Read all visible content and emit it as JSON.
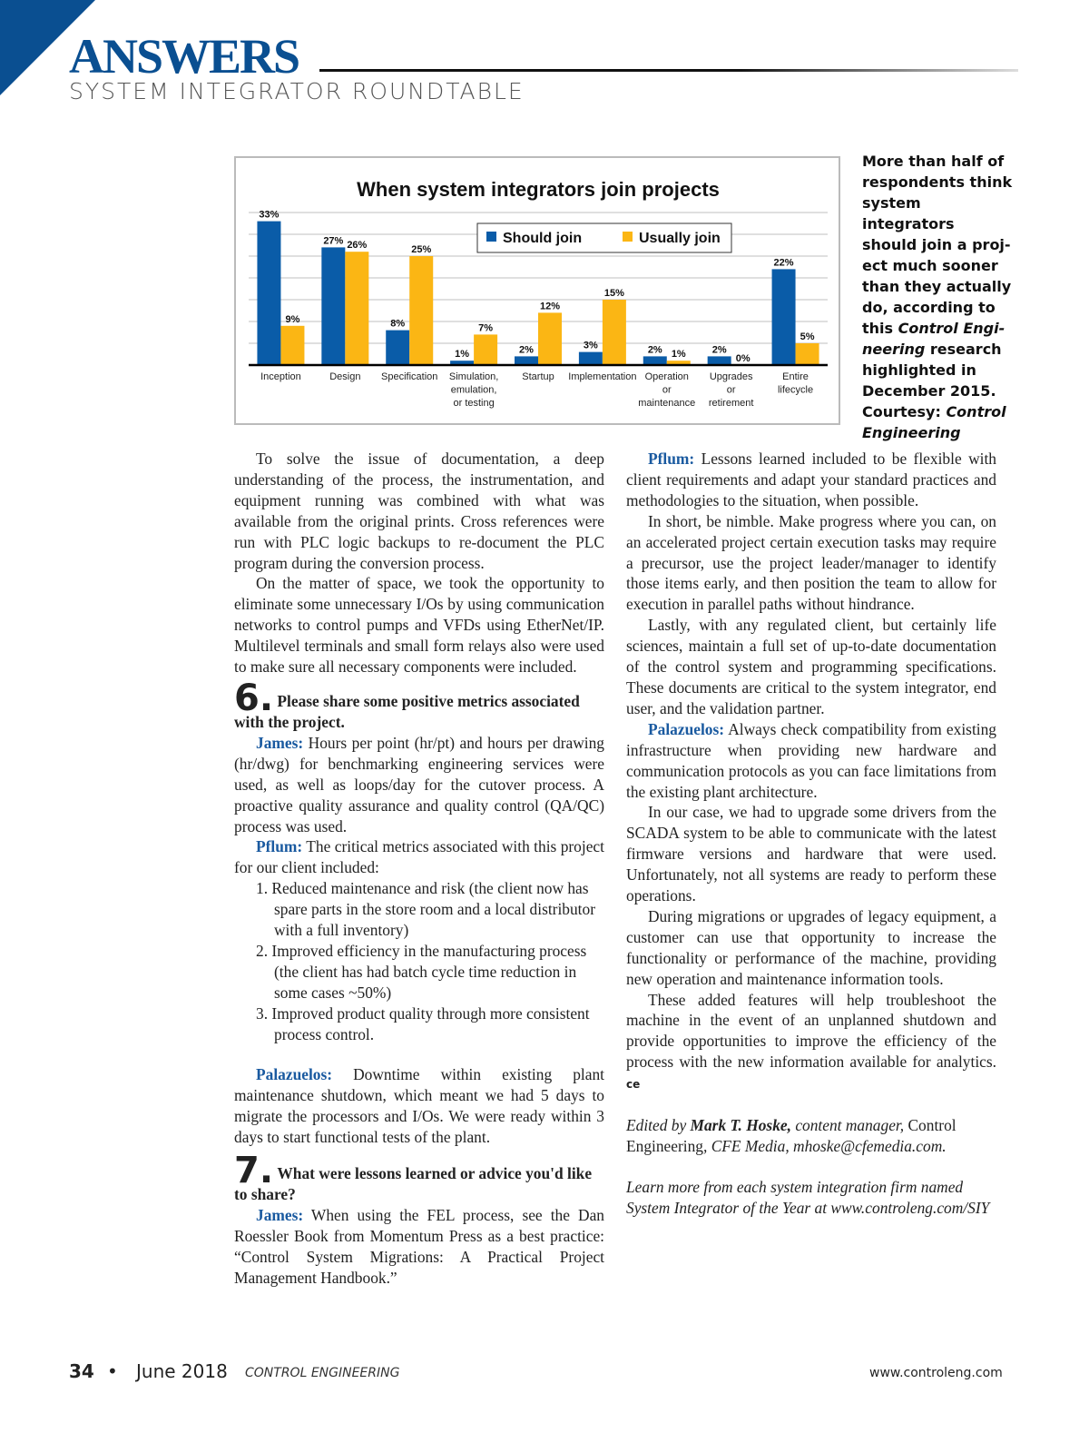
{
  "header": {
    "section": "ANSWERS",
    "subtitle": "SYSTEM INTEGRATOR ROUNDTABLE"
  },
  "chart_data": {
    "type": "bar",
    "title": "When system integrators join projects",
    "categories": [
      "Inception",
      "Design",
      "Specification",
      "Simulation, emulation, or testing",
      "Startup",
      "Implementation",
      "Operation or maintenance",
      "Upgrades or retirement",
      "Entire lifecycle"
    ],
    "category_lines": [
      [
        "Inception"
      ],
      [
        "Design"
      ],
      [
        "Specification"
      ],
      [
        "Simulation,",
        "emulation,",
        "or testing"
      ],
      [
        "Startup"
      ],
      [
        "Implementation"
      ],
      [
        "Operation",
        "or",
        "maintenance"
      ],
      [
        "Upgrades",
        "or",
        "retirement"
      ],
      [
        "Entire",
        "lifecycle"
      ]
    ],
    "series": [
      {
        "name": "Should join",
        "color": "#0a5ca8",
        "values": [
          33,
          27,
          8,
          1,
          2,
          3,
          2,
          2,
          22
        ]
      },
      {
        "name": "Usually join",
        "color": "#fbb614",
        "values": [
          9,
          26,
          25,
          7,
          12,
          15,
          1,
          0,
          5
        ]
      }
    ],
    "unit": "%",
    "ylim": [
      0,
      35
    ],
    "grid": true,
    "legend": "top-center"
  },
  "caption": [
    "More than half of",
    "respondents think",
    "system integrators",
    "should join a proj-",
    "ect much sooner",
    "than they actually",
    "do, according to",
    "this ",
    "Control Engi-",
    "neering",
    " research",
    "highlighted in",
    "December 2015.",
    "Courtesy: ",
    "Control",
    "Engineering"
  ],
  "left": {
    "p1": "To solve the issue of documentation, a deep understanding of the process, the instrumentation, and equipment running was combined with what was available from the original prints. Cross references were run with PLC logic backups to re-document the PLC program during the conversion process.",
    "p2": "On the matter of space, we took the opportunity to eliminate some unnecessary I/Os by using communication networks to control pumps and VFDs using EtherNet/IP. Multilevel terminals and small form relays also were used to make sure all necessary components were included.",
    "q6num": "6.",
    "q6": "Please share some positive metrics associated with the project.",
    "james1_spk": "James:",
    "james1": "Hours per point (hr/pt) and hours per drawing (hr/dwg) for benchmarking engineering services were used, as well as loops/day for the cutover process. A proactive quality assurance and quality control (QA/QC) process was used.",
    "pflum1_spk": "Pflum:",
    "pflum1": "The critical metrics associated with this project for our client included:",
    "list": [
      {
        "n": "1.",
        "t": "Reduced maintenance and risk (the client now has spare parts in the store room and a local distributor with a full inventory)"
      },
      {
        "n": "2.",
        "t": "Improved efficiency in the manufacturing process (the client has had batch cycle time reduction in some cases ~50%)"
      },
      {
        "n": "3.",
        "t": "Improved product quality through more consistent process control."
      }
    ],
    "pal1_spk": "Palazuelos:",
    "pal1": "Downtime within existing plant maintenance shutdown, which meant we had 5 days to migrate the processors and I/Os. We were ready within 3 days to start functional tests of the plant.",
    "q7num": "7.",
    "q7": "What were lessons learned or advice you'd like to share?",
    "james2_spk": "James:",
    "james2": "When using the FEL process, see the Dan Roessler Book from Momentum Press as a best practice: “Control System Migrations: A Practical Project Management Handbook.”"
  },
  "right": {
    "pflum2_spk": "Pflum:",
    "pflum2": "Lessons learned included to be flexible with client requirements and adapt your standard practices and methodologies to the situation, when possible.",
    "p2": "In short, be nimble. Make progress where you can, on an accelerated project certain execution tasks may require a precursor, use the project leader/manager to identify those items early, and then position the team to allow for execution in parallel paths without hindrance.",
    "p3": "Lastly, with any regulated client, but certainly life sciences, maintain a full set of up-to-date documentation of the control system and programming specifications. These documents are critical to the system integrator, end user, and the validation partner.",
    "pal2_spk": "Palazuelos:",
    "pal2": "Always check compatibility from existing infrastructure when providing new hardware and communication protocols as you can face limitations from the existing plant architecture.",
    "p5": "In our case, we had to upgrade some drivers from the SCADA system to be able to communicate with the latest firmware versions and hardware that were used. Unfortunately, not all systems are ready to perform these operations.",
    "p6": "During migrations or upgrades of legacy equipment, a customer can use that opportunity to increase the functionality or performance of the machine, providing new operation and maintenance information tools.",
    "p7": "These added features will help troubleshoot the machine in the event of an unplanned shutdown and provide opportunities to improve the efficiency of the process with the new information available for analytics.",
    "end_mark": "ce",
    "edited": [
      "Edited by ",
      "Mark T. Hoske,",
      " content manager, ",
      "Control Engineering",
      ", CFE Media, mhoske@cfemedia.com."
    ],
    "learn": "Learn more from each system integration firm named System Integrator of the Year at www.controleng.com/SIY"
  },
  "footer": {
    "page": "34",
    "bullet": "•",
    "date": "June 2018",
    "magazine": "CONTROL ENGINEERING",
    "url": "www.controleng.com"
  }
}
